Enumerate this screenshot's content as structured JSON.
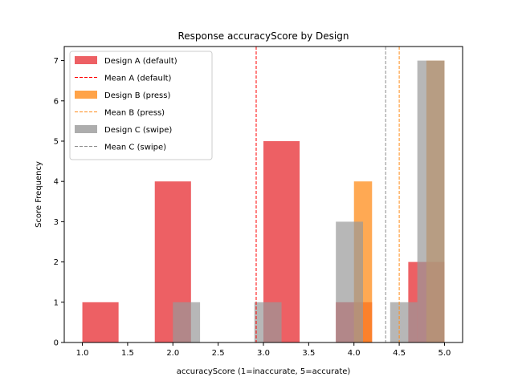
{
  "chart_data": {
    "type": "bar",
    "title": "Response accuracyScore by Design",
    "xlabel": "accuracyScore (1=inaccurate, 5=accurate)",
    "ylabel": "Score Frequency",
    "xlim": [
      0.8,
      5.2
    ],
    "ylim": [
      0,
      7.35
    ],
    "xticks": [
      "1.0",
      "1.5",
      "2.0",
      "2.5",
      "3.0",
      "3.5",
      "4.0",
      "4.5",
      "5.0"
    ],
    "yticks": [
      "0",
      "1",
      "2",
      "3",
      "4",
      "5",
      "6",
      "7"
    ],
    "grid": false,
    "legend_position": "top-left",
    "series": [
      {
        "name": "Design A (default)",
        "color": "#e8383d",
        "opacity": 0.8,
        "bins": [
          {
            "x0": 1.0,
            "x1": 1.4,
            "value": 1
          },
          {
            "x0": 1.8,
            "x1": 2.2,
            "value": 4
          },
          {
            "x0": 3.0,
            "x1": 3.4,
            "value": 5
          },
          {
            "x0": 3.8,
            "x1": 4.2,
            "value": 1
          },
          {
            "x0": 4.6,
            "x1": 5.0,
            "value": 2
          }
        ]
      },
      {
        "name": "Design B (press)",
        "color": "#ff8c1a",
        "opacity": 0.75,
        "bins": [
          {
            "x0": 4.0,
            "x1": 4.2,
            "value": 4
          },
          {
            "x0": 4.8,
            "x1": 5.0,
            "value": 7
          }
        ]
      },
      {
        "name": "Design C (swipe)",
        "color": "#999999",
        "opacity": 0.7,
        "bins": [
          {
            "x0": 2.0,
            "x1": 2.3,
            "value": 1
          },
          {
            "x0": 2.9,
            "x1": 3.2,
            "value": 1
          },
          {
            "x0": 3.8,
            "x1": 4.1,
            "value": 3
          },
          {
            "x0": 4.4,
            "x1": 4.7,
            "value": 1
          },
          {
            "x0": 4.7,
            "x1": 5.0,
            "value": 7
          }
        ]
      }
    ],
    "mean_lines": [
      {
        "name": "Mean A (default)",
        "value": 2.92,
        "color": "#ff0000"
      },
      {
        "name": "Mean B (press)",
        "value": 4.5,
        "color": "#ff8c1a"
      },
      {
        "name": "Mean C (swipe)",
        "value": 4.35,
        "color": "#8c8c8c"
      }
    ],
    "legend": [
      {
        "label": "Design A (default)",
        "kind": "patch",
        "color": "#e8383d"
      },
      {
        "label": "Mean A (default)",
        "kind": "dashed",
        "color": "#ff0000"
      },
      {
        "label": "Design B (press)",
        "kind": "patch",
        "color": "#ff8c1a"
      },
      {
        "label": "Mean B (press)",
        "kind": "dashed",
        "color": "#ff8c1a"
      },
      {
        "label": "Design C (swipe)",
        "kind": "patch",
        "color": "#999999"
      },
      {
        "label": "Mean C (swipe)",
        "kind": "dashed",
        "color": "#8c8c8c"
      }
    ]
  }
}
